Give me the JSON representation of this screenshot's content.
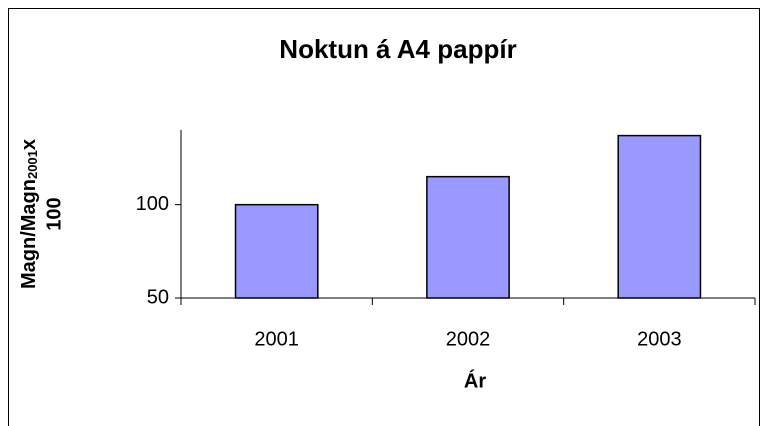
{
  "chart_data": {
    "type": "bar",
    "title": "Noktun á A4 pappír",
    "x_label": "Ár",
    "y_label": [
      "Magn/Magn",
      "2001",
      "x",
      "100"
    ],
    "categories": [
      "2001",
      "2002",
      "2003"
    ],
    "values": [
      100,
      115,
      137
    ],
    "color": "#9999ff",
    "ylim": [
      50,
      140
    ],
    "yticks": [
      50,
      100
    ],
    "grid": false
  }
}
